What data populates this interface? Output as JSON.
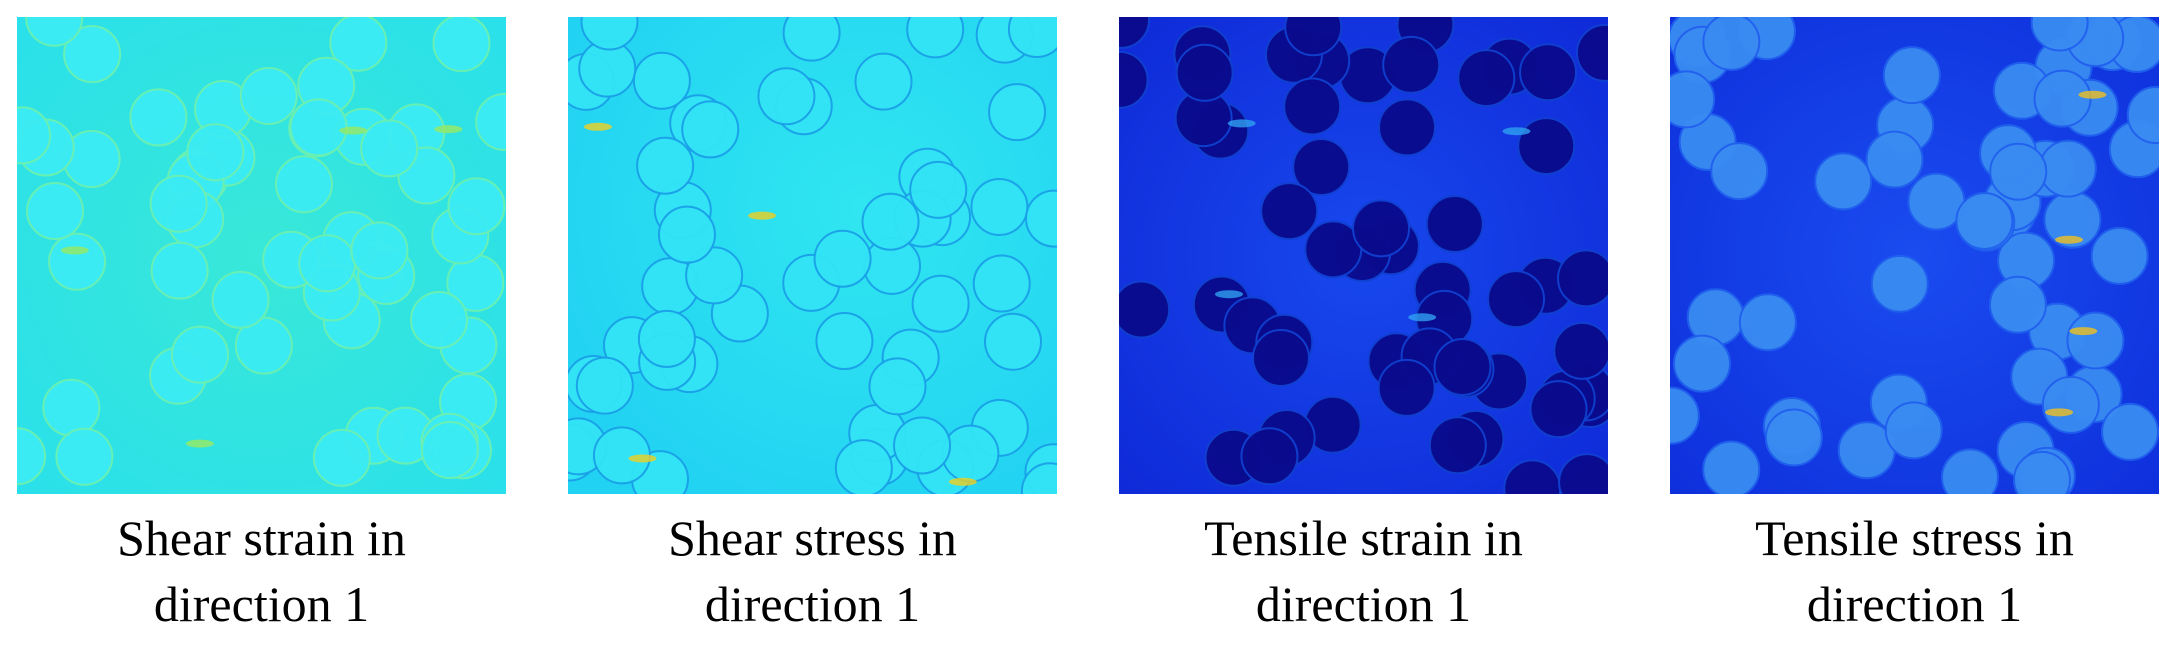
{
  "panels": [
    {
      "caption": [
        "Shear strain in",
        "direction 1"
      ]
    },
    {
      "caption": [
        "Shear stress in",
        "direction 1"
      ]
    },
    {
      "caption": [
        "Tensile strain in",
        "direction 1"
      ]
    },
    {
      "caption": [
        "Tensile stress in",
        "direction 1"
      ]
    }
  ]
}
